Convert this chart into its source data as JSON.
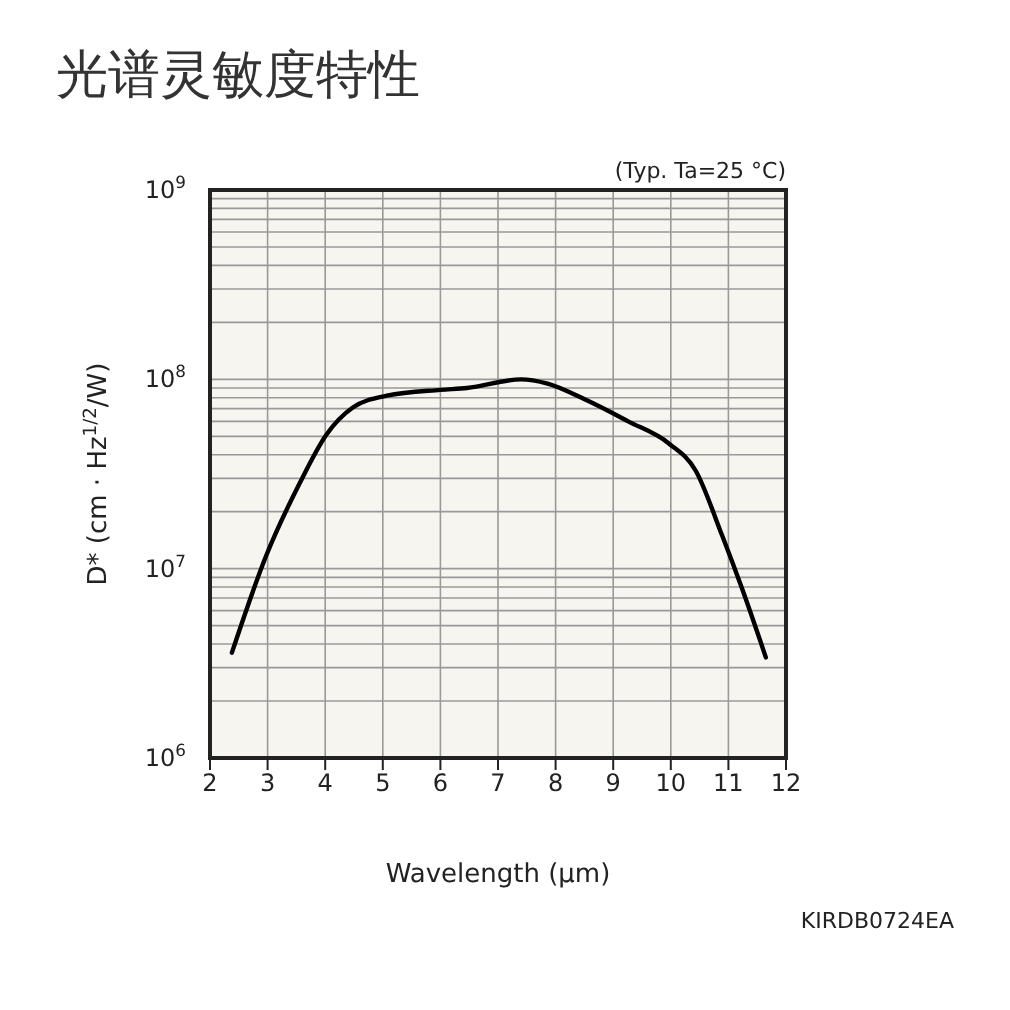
{
  "chart_data": {
    "type": "line",
    "title": "光谱灵敏度特性",
    "xlabel": "Wavelength (μm)",
    "ylabel": "D* (cm · Hz$^{1/2}$/W)",
    "annotations": [
      "(Typ. Ta=25 °C)",
      "KIRDB0724EA"
    ],
    "x": [
      2.38,
      2.97,
      3.55,
      4.02,
      4.48,
      5.07,
      6.0,
      6.46,
      7.4,
      7.86,
      8.56,
      9.26,
      9.96,
      10.43,
      10.89,
      11.24,
      11.65
    ],
    "series": [
      {
        "color": "#000000",
        "values": [
          3600000.0,
          11600000.0,
          28000000.0,
          51000000.0,
          71000000.0,
          82000000.0,
          88000000.0,
          90000000.0,
          100000000.0,
          95000000.0,
          77000000.0,
          60000000.0,
          46000000.0,
          33000000.0,
          15000000.0,
          7800000.0,
          3400000.0
        ]
      }
    ],
    "xlim": [
      2,
      12
    ],
    "xticks": [
      2,
      3,
      4,
      5,
      6,
      7,
      8,
      9,
      10,
      11,
      12
    ],
    "ylim": [
      1000000.0,
      1000000000.0
    ],
    "yticks": [
      {
        "value": 1000000.0,
        "label": "10$^{6}$"
      },
      {
        "value": 10000000.0,
        "label": "10$^{7}$"
      },
      {
        "value": 100000000.0,
        "label": "10$^{8}$"
      },
      {
        "value": 1000000000.0,
        "label": "10$^{9}$"
      }
    ],
    "log": "y",
    "grid": true,
    "marker": "none",
    "line_style": "solid"
  }
}
